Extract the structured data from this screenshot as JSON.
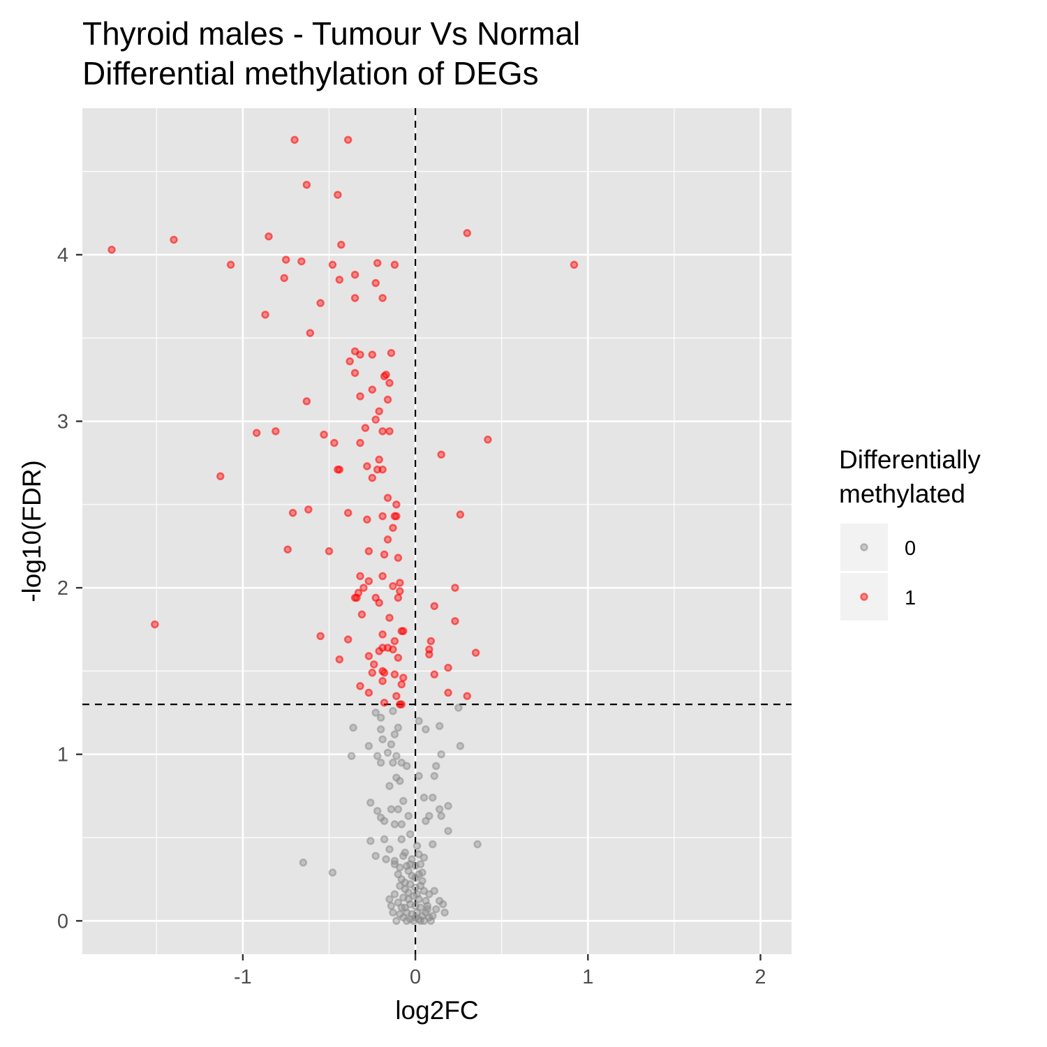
{
  "chart_data": {
    "type": "scatter",
    "title": "Thyroid males - Tumour Vs Normal",
    "subtitle": "Differential methylation of DEGs",
    "xlabel": "log2FC",
    "ylabel": "-log10(FDR)",
    "xlim": [
      -1.93,
      2.18
    ],
    "ylim": [
      -0.2,
      4.88
    ],
    "x_ticks": [
      -1,
      0,
      1,
      2
    ],
    "x_tick_labels": [
      "-1",
      "0",
      "1",
      "2"
    ],
    "y_ticks": [
      0,
      1,
      2,
      3,
      4
    ],
    "y_tick_labels": [
      "0",
      "1",
      "2",
      "3",
      "4"
    ],
    "grid": true,
    "reference_lines": {
      "x": 0,
      "y": 1.3
    },
    "legend": {
      "title_line1": "Differentially",
      "title_line2": "methylated",
      "position": "right",
      "entries": [
        {
          "label": "0",
          "color": "#8c8c8c"
        },
        {
          "label": "1",
          "color": "#ff0000"
        }
      ]
    },
    "colors": {
      "panel": "#e5e5e5",
      "grid": "#ffffff",
      "not_methylated": "#8c8c8c",
      "methylated": "#ff0000"
    },
    "series": [
      {
        "name": "1",
        "color": "#ff0000",
        "points": [
          [
            -1.76,
            4.03
          ],
          [
            -1.4,
            4.09
          ],
          [
            -1.07,
            3.94
          ],
          [
            -0.85,
            4.11
          ],
          [
            -0.75,
            3.97
          ],
          [
            -0.66,
            3.96
          ],
          [
            -0.76,
            3.86
          ],
          [
            -0.87,
            3.64
          ],
          [
            -0.7,
            4.69
          ],
          [
            -0.63,
            4.42
          ],
          [
            -0.39,
            4.69
          ],
          [
            -0.45,
            4.36
          ],
          [
            -0.43,
            4.06
          ],
          [
            -0.48,
            3.94
          ],
          [
            -0.35,
            3.88
          ],
          [
            -0.44,
            3.85
          ],
          [
            -0.22,
            3.95
          ],
          [
            -0.12,
            3.94
          ],
          [
            -0.23,
            3.83
          ],
          [
            -0.35,
            3.74
          ],
          [
            -0.19,
            3.74
          ],
          [
            -0.55,
            3.71
          ],
          [
            -0.61,
            3.53
          ],
          [
            -0.35,
            3.42
          ],
          [
            -0.32,
            3.4
          ],
          [
            -0.25,
            3.4
          ],
          [
            -0.14,
            3.41
          ],
          [
            -0.38,
            3.36
          ],
          [
            -0.35,
            3.29
          ],
          [
            -0.17,
            3.28
          ],
          [
            -0.18,
            3.27
          ],
          [
            -0.15,
            3.23
          ],
          [
            -0.25,
            3.19
          ],
          [
            -0.32,
            3.15
          ],
          [
            -0.16,
            3.13
          ],
          [
            -0.63,
            3.12
          ],
          [
            -0.21,
            3.06
          ],
          [
            -0.23,
            3.01
          ],
          [
            -0.29,
            2.96
          ],
          [
            -0.19,
            2.94
          ],
          [
            -0.15,
            2.94
          ],
          [
            -0.92,
            2.93
          ],
          [
            -0.81,
            2.94
          ],
          [
            -0.53,
            2.92
          ],
          [
            -0.47,
            2.87
          ],
          [
            -0.32,
            2.87
          ],
          [
            0.42,
            2.89
          ],
          [
            0.15,
            2.8
          ],
          [
            -0.21,
            2.77
          ],
          [
            -0.28,
            2.73
          ],
          [
            -0.22,
            2.71
          ],
          [
            -0.19,
            2.71
          ],
          [
            -0.45,
            2.71
          ],
          [
            -0.44,
            2.71
          ],
          [
            -1.13,
            2.67
          ],
          [
            -0.25,
            2.66
          ],
          [
            -0.16,
            2.54
          ],
          [
            -0.11,
            2.5
          ],
          [
            -0.62,
            2.47
          ],
          [
            -0.71,
            2.45
          ],
          [
            -0.39,
            2.45
          ],
          [
            -0.19,
            2.43
          ],
          [
            -0.12,
            2.43
          ],
          [
            -0.11,
            2.43
          ],
          [
            -0.28,
            2.41
          ],
          [
            0.26,
            2.44
          ],
          [
            -0.13,
            2.36
          ],
          [
            -0.16,
            2.29
          ],
          [
            -0.74,
            2.23
          ],
          [
            -0.5,
            2.22
          ],
          [
            -0.27,
            2.22
          ],
          [
            -0.18,
            2.2
          ],
          [
            -0.1,
            2.18
          ],
          [
            -0.32,
            2.07
          ],
          [
            -0.19,
            2.07
          ],
          [
            -0.27,
            2.04
          ],
          [
            -0.09,
            2.03
          ],
          [
            -0.13,
            2.01
          ],
          [
            -0.3,
            2.0
          ],
          [
            -0.09,
            1.98
          ],
          [
            -0.33,
            1.97
          ],
          [
            -0.35,
            1.94
          ],
          [
            -0.34,
            1.94
          ],
          [
            -0.23,
            1.94
          ],
          [
            -0.1,
            1.94
          ],
          [
            -0.21,
            1.91
          ],
          [
            0.11,
            1.89
          ],
          [
            0.23,
            2.0
          ],
          [
            -0.31,
            1.84
          ],
          [
            -0.15,
            1.82
          ],
          [
            0.23,
            1.8
          ],
          [
            -1.51,
            1.78
          ],
          [
            -0.08,
            1.74
          ],
          [
            -0.07,
            1.74
          ],
          [
            -0.55,
            1.71
          ],
          [
            -0.19,
            1.72
          ],
          [
            -0.39,
            1.69
          ],
          [
            -0.12,
            1.68
          ],
          [
            0.09,
            1.68
          ],
          [
            -0.16,
            1.64
          ],
          [
            -0.19,
            1.64
          ],
          [
            -0.21,
            1.62
          ],
          [
            -0.13,
            1.63
          ],
          [
            0.08,
            1.63
          ],
          [
            0.08,
            1.6
          ],
          [
            0.35,
            1.61
          ],
          [
            -0.27,
            1.59
          ],
          [
            -0.1,
            1.58
          ],
          [
            -0.44,
            1.57
          ],
          [
            -0.24,
            1.54
          ],
          [
            0.19,
            1.52
          ],
          [
            -0.19,
            1.5
          ],
          [
            -0.18,
            1.49
          ],
          [
            -0.12,
            1.48
          ],
          [
            0.11,
            1.48
          ],
          [
            -0.25,
            1.49
          ],
          [
            -0.07,
            1.46
          ],
          [
            -0.19,
            1.44
          ],
          [
            -0.08,
            1.42
          ],
          [
            -0.32,
            1.41
          ],
          [
            -0.27,
            1.37
          ],
          [
            0.19,
            1.37
          ],
          [
            -0.11,
            1.35
          ],
          [
            0.3,
            1.35
          ],
          [
            -0.18,
            1.31
          ],
          [
            -0.09,
            1.3
          ],
          [
            -0.08,
            1.3
          ],
          [
            0.3,
            4.13
          ],
          [
            0.92,
            3.94
          ]
        ]
      },
      {
        "name": "0",
        "color": "#8c8c8c",
        "points": [
          [
            -0.23,
            1.25
          ],
          [
            -0.2,
            1.22
          ],
          [
            -0.13,
            1.26
          ],
          [
            0.25,
            1.28
          ],
          [
            0.02,
            1.2
          ],
          [
            -0.36,
            1.16
          ],
          [
            -0.2,
            1.15
          ],
          [
            -0.1,
            1.16
          ],
          [
            0.14,
            1.17
          ],
          [
            0.06,
            1.15
          ],
          [
            -0.19,
            1.09
          ],
          [
            -0.14,
            1.06
          ],
          [
            0.26,
            1.05
          ],
          [
            -0.12,
            1.12
          ],
          [
            -0.27,
            1.05
          ],
          [
            -0.37,
            0.99
          ],
          [
            -0.22,
            0.99
          ],
          [
            -0.16,
            1.01
          ],
          [
            -0.11,
            0.99
          ],
          [
            0.15,
            1.0
          ],
          [
            -0.2,
            0.95
          ],
          [
            -0.13,
            0.95
          ],
          [
            -0.08,
            0.95
          ],
          [
            -0.05,
            0.93
          ],
          [
            0.12,
            0.93
          ],
          [
            0.11,
            0.87
          ],
          [
            0.02,
            0.87
          ],
          [
            -0.11,
            0.86
          ],
          [
            -0.09,
            0.84
          ],
          [
            -0.15,
            0.81
          ],
          [
            -0.26,
            0.71
          ],
          [
            -0.07,
            0.72
          ],
          [
            0.05,
            0.74
          ],
          [
            0.1,
            0.74
          ],
          [
            0.19,
            0.69
          ],
          [
            -0.22,
            0.66
          ],
          [
            -0.14,
            0.67
          ],
          [
            -0.1,
            0.67
          ],
          [
            -0.04,
            0.63
          ],
          [
            0.08,
            0.63
          ],
          [
            0.14,
            0.67
          ],
          [
            0.15,
            0.63
          ],
          [
            -0.2,
            0.62
          ],
          [
            -0.18,
            0.6
          ],
          [
            -0.12,
            0.58
          ],
          [
            -0.08,
            0.58
          ],
          [
            0.06,
            0.6
          ],
          [
            0.19,
            0.54
          ],
          [
            -0.26,
            0.48
          ],
          [
            -0.18,
            0.49
          ],
          [
            -0.08,
            0.49
          ],
          [
            -0.15,
            0.43
          ],
          [
            0.36,
            0.46
          ],
          [
            0.1,
            0.46
          ],
          [
            -0.23,
            0.39
          ],
          [
            -0.17,
            0.37
          ],
          [
            -0.12,
            0.36
          ],
          [
            -0.06,
            0.41
          ],
          [
            0.02,
            0.4
          ],
          [
            0.05,
            0.38
          ],
          [
            -0.65,
            0.35
          ],
          [
            -0.48,
            0.29
          ],
          [
            -0.12,
            0.34
          ],
          [
            -0.09,
            0.32
          ],
          [
            -0.05,
            0.33
          ],
          [
            -0.03,
            0.34
          ],
          [
            0.0,
            0.33
          ],
          [
            0.03,
            0.34
          ],
          [
            -0.1,
            0.28
          ],
          [
            -0.08,
            0.25
          ],
          [
            -0.04,
            0.3
          ],
          [
            -0.02,
            0.27
          ],
          [
            0.0,
            0.26
          ],
          [
            0.02,
            0.28
          ],
          [
            0.04,
            0.24
          ],
          [
            -0.09,
            0.21
          ],
          [
            -0.06,
            0.19
          ],
          [
            -0.03,
            0.22
          ],
          [
            0.0,
            0.2
          ],
          [
            0.03,
            0.21
          ],
          [
            0.05,
            0.18
          ],
          [
            0.08,
            0.16
          ],
          [
            0.11,
            0.18
          ],
          [
            -0.12,
            0.16
          ],
          [
            -0.07,
            0.14
          ],
          [
            -0.04,
            0.13
          ],
          [
            -0.01,
            0.15
          ],
          [
            0.02,
            0.13
          ],
          [
            0.06,
            0.12
          ],
          [
            0.14,
            0.12
          ],
          [
            0.16,
            0.1
          ],
          [
            -0.14,
            0.09
          ],
          [
            -0.1,
            0.11
          ],
          [
            -0.06,
            0.08
          ],
          [
            -0.03,
            0.1
          ],
          [
            0.0,
            0.09
          ],
          [
            0.03,
            0.08
          ],
          [
            0.07,
            0.07
          ],
          [
            0.12,
            0.07
          ],
          [
            0.17,
            0.05
          ],
          [
            -0.13,
            0.05
          ],
          [
            -0.09,
            0.04
          ],
          [
            -0.05,
            0.05
          ],
          [
            -0.02,
            0.04
          ],
          [
            0.01,
            0.05
          ],
          [
            0.04,
            0.03
          ],
          [
            0.08,
            0.02
          ],
          [
            -0.07,
            0.02
          ],
          [
            -0.03,
            0.01
          ],
          [
            0.0,
            0.02
          ],
          [
            0.02,
            0.01
          ],
          [
            0.05,
            0.0
          ],
          [
            -0.01,
            0.0
          ],
          [
            0.03,
            0.0
          ],
          [
            -0.05,
            0.0
          ],
          [
            -0.11,
            0.0
          ],
          [
            0.09,
            0.0
          ],
          [
            -0.08,
            0.08
          ],
          [
            0.06,
            0.05
          ],
          [
            -0.04,
            0.17
          ],
          [
            0.01,
            0.16
          ],
          [
            -0.06,
            0.23
          ],
          [
            0.04,
            0.29
          ],
          [
            -0.02,
            0.37
          ],
          [
            0.01,
            0.45
          ],
          [
            -0.03,
            0.52
          ],
          [
            -0.07,
            0.39
          ],
          [
            0.07,
            0.09
          ],
          [
            -0.15,
            0.13
          ],
          [
            0.1,
            0.03
          ]
        ]
      }
    ]
  }
}
